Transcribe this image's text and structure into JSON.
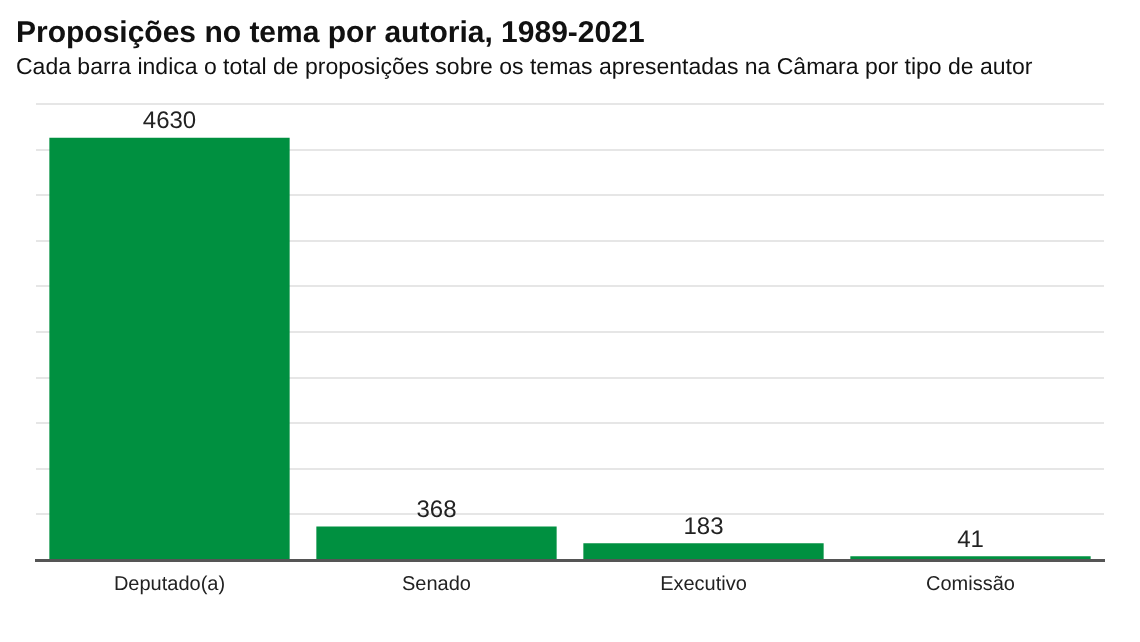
{
  "chart_data": {
    "type": "bar",
    "title": "Proposições no tema por autoria, 1989-2021",
    "subtitle": "Cada barra indica o total de proposições sobre os temas apresentadas na Câmara por tipo de autor",
    "categories": [
      "Deputado(a)",
      "Senado",
      "Executivo",
      "Comissão"
    ],
    "values": [
      4630,
      368,
      183,
      41
    ],
    "color": "#009040",
    "ylim": [
      0,
      5000
    ],
    "yticks": [
      {
        "value": 0,
        "label": null
      },
      {
        "value": 500,
        "label": null
      },
      {
        "value": 1000,
        "label": null
      },
      {
        "value": 1500,
        "label": null
      },
      {
        "value": 2000,
        "label": null
      },
      {
        "value": 2500,
        "label": null
      },
      {
        "value": 3000,
        "label": null
      },
      {
        "value": 3500,
        "label": null
      },
      {
        "value": 4000,
        "label": null
      },
      {
        "value": 4500,
        "label": null
      },
      {
        "value": 5000,
        "label": null
      }
    ],
    "tick_labels": "x",
    "grid": "y",
    "data_labels": true,
    "legend": false
  }
}
